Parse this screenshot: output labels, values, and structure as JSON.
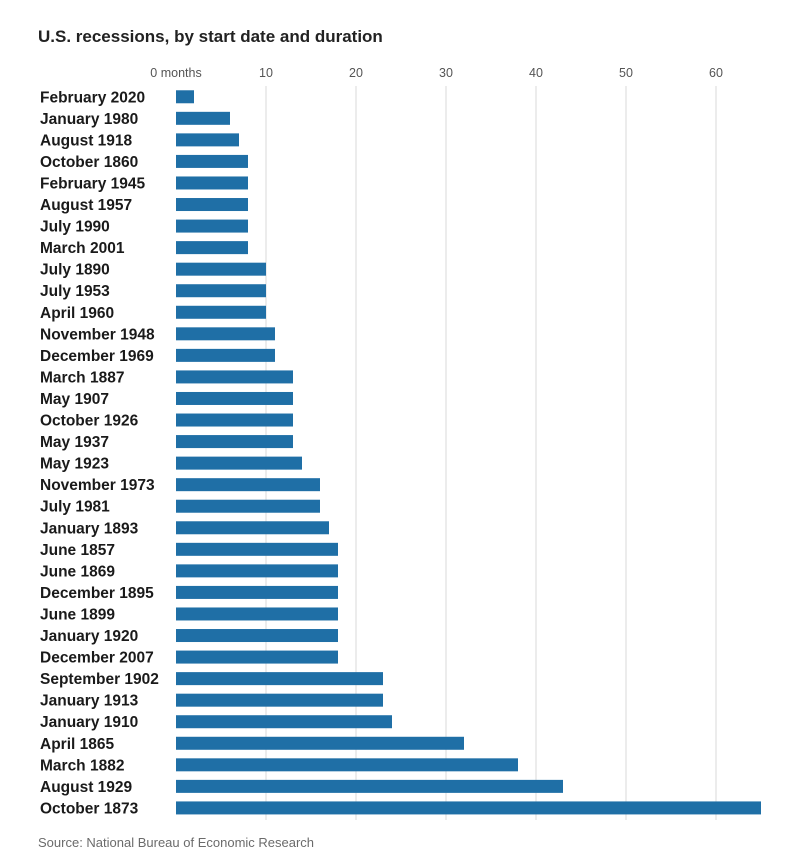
{
  "chart_data": {
    "type": "bar",
    "orientation": "horizontal",
    "title": "U.S. recessions, by start date and duration",
    "xlabel": "",
    "ylabel": "",
    "x_unit_label": "months",
    "xlim": [
      0,
      65
    ],
    "x_ticks": [
      0,
      10,
      20,
      30,
      40,
      50,
      60
    ],
    "x_tick_labels": [
      "0 months",
      "10",
      "20",
      "30",
      "40",
      "50",
      "60"
    ],
    "grid": true,
    "bar_color": "#1f6fa6",
    "categories": [
      "February 2020",
      "January 1980",
      "August 1918",
      "October 1860",
      "February 1945",
      "August 1957",
      "July 1990",
      "March 2001",
      "July 1890",
      "July 1953",
      "April 1960",
      "November 1948",
      "December 1969",
      "March 1887",
      "May 1907",
      "October 1926",
      "May 1937",
      "May 1923",
      "November 1973",
      "July 1981",
      "January 1893",
      "June 1857",
      "June 1869",
      "December 1895",
      "June 1899",
      "January 1920",
      "December 2007",
      "September 1902",
      "January 1913",
      "January 1910",
      "April 1865",
      "March 1882",
      "August 1929",
      "October 1873"
    ],
    "values": [
      2,
      6,
      7,
      8,
      8,
      8,
      8,
      8,
      10,
      10,
      10,
      11,
      11,
      13,
      13,
      13,
      13,
      14,
      16,
      16,
      17,
      18,
      18,
      18,
      18,
      18,
      18,
      23,
      23,
      24,
      32,
      38,
      43,
      65
    ]
  },
  "source": "Source: National Bureau of Economic Research"
}
